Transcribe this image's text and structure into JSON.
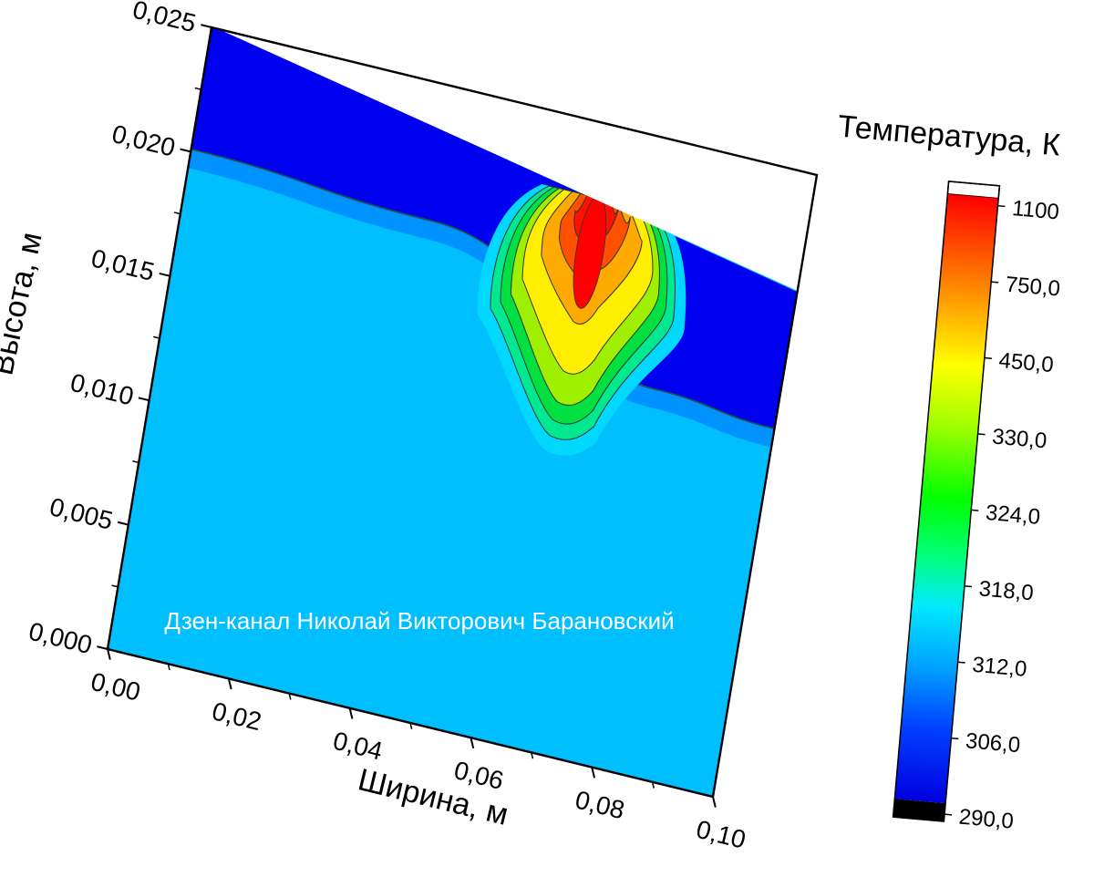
{
  "chart_data": {
    "type": "heatmap",
    "xlabel": "Ширина, м",
    "ylabel": "Высота, м",
    "xlim": [
      0,
      0.1
    ],
    "ylim": [
      0,
      0.025
    ],
    "x_ticks": [
      "0,00",
      "0,02",
      "0,04",
      "0,06",
      "0,08",
      "0,10"
    ],
    "y_ticks": [
      "0,000",
      "0,005",
      "0,010",
      "0,015",
      "0,020",
      "0,025"
    ],
    "colorbar": {
      "title": "Температура, К",
      "ticks": [
        "1100",
        "750,0",
        "450,0",
        "330,0",
        "324,0",
        "318,0",
        "312,0",
        "306,0",
        "290,0"
      ],
      "colors": [
        "#ff0000",
        "#ff8000",
        "#ffff00",
        "#00ff00",
        "#00d000",
        "#00ffff",
        "#00bfff",
        "#0000ff",
        "#000000"
      ]
    },
    "surface_height_at_x": [
      [
        0,
        0.0251
      ],
      [
        0.1,
        0.0203
      ]
    ],
    "layer_boundary_height_at_x": [
      [
        0,
        0.0201
      ],
      [
        0.04,
        0.0196
      ],
      [
        0.08,
        0.0152
      ],
      [
        0.1,
        0.0148
      ]
    ],
    "background_colors": {
      "substrate": "#00bfff",
      "top_layer": "#0000ff"
    },
    "hot_region": {
      "center_x": 0.066,
      "peak_y": 0.0195,
      "base_y": 0.0118,
      "peak_temperature": 1100
    }
  },
  "watermark": "Дзен-канал Николай Викторович Барановский"
}
